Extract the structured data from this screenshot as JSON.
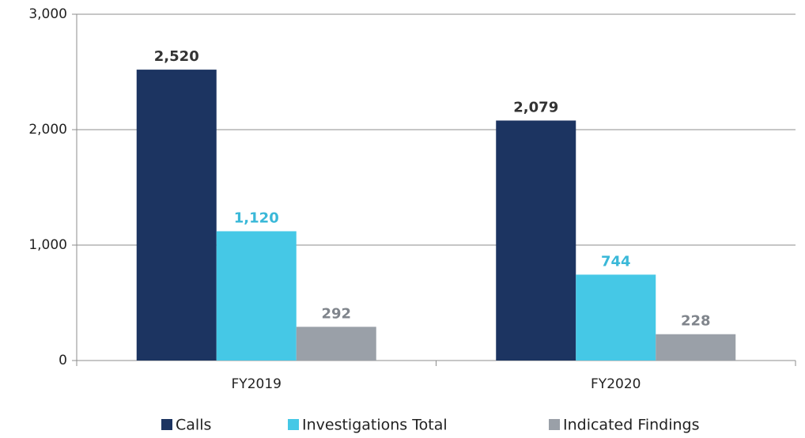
{
  "chart_data": {
    "type": "bar",
    "categories": [
      "FY2019",
      "FY2020"
    ],
    "series": [
      {
        "name": "Calls",
        "color": "#1c3461",
        "label_color": "#333333",
        "values": [
          2520,
          2079
        ],
        "value_labels": [
          "2,520",
          "2,079"
        ]
      },
      {
        "name": "Investigations Total",
        "color": "#45c8e6",
        "label_color": "#3ab8d8",
        "values": [
          1120,
          744
        ],
        "value_labels": [
          "1,120",
          "744"
        ]
      },
      {
        "name": "Indicated Findings",
        "color": "#9aa0a8",
        "label_color": "#80858c",
        "values": [
          292,
          228
        ],
        "value_labels": [
          "292",
          "228"
        ]
      }
    ],
    "ylim": [
      0,
      3000
    ],
    "yticks": [
      0,
      {
        "value": 1000,
        "label": "1,000"
      },
      {
        "value": 2000,
        "label": "2,000"
      },
      {
        "value": 3000,
        "label": "3,000"
      }
    ],
    "grid": true,
    "legend": "bottom"
  }
}
